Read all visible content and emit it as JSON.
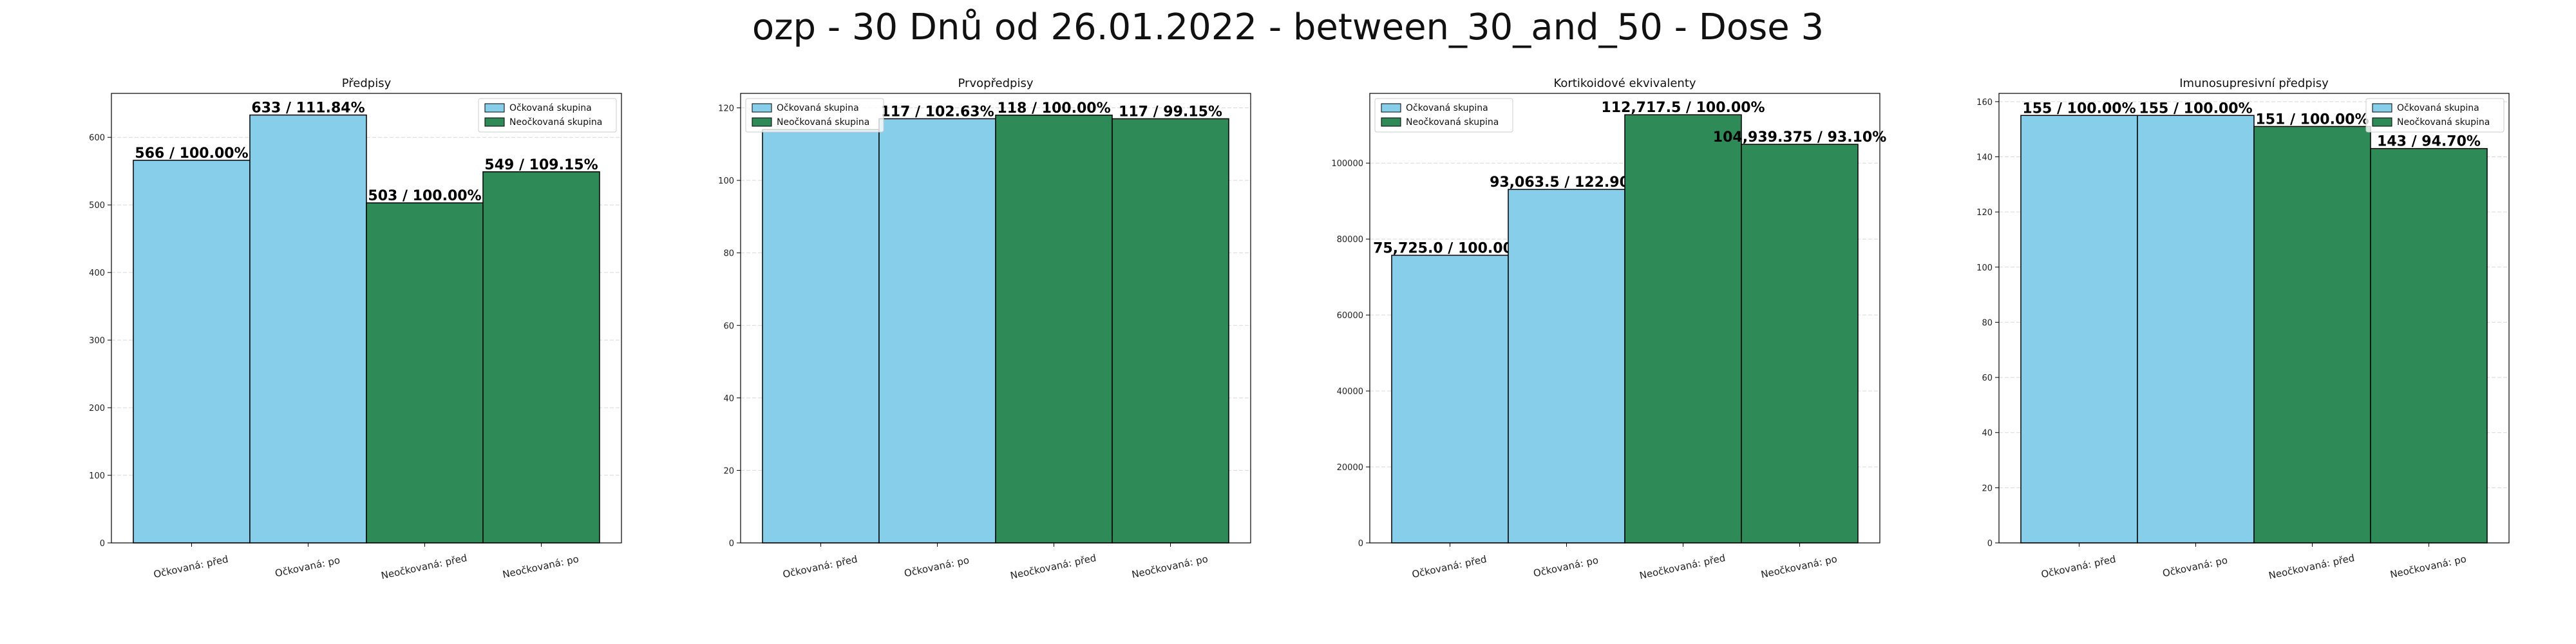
{
  "title": "ozp - 30 Dnů od 26.01.2022 - between_30_and_50 - Dose 3",
  "colors": {
    "vaccinated": "#87CEEB",
    "unvaccinated": "#2E8B57"
  },
  "chart_data": [
    {
      "type": "bar",
      "title": "Předpisy",
      "categories": [
        "Očkovaná: před",
        "Očkovaná: po",
        "Neočkovaná: před",
        "Neočkovaná: po"
      ],
      "values": [
        566,
        633,
        503,
        549
      ],
      "bar_labels": [
        "566 / 100.00%",
        "633 / 111.84%",
        "503 / 100.00%",
        "549 / 109.15%"
      ],
      "groups": [
        "vaccinated",
        "vaccinated",
        "unvaccinated",
        "unvaccinated"
      ],
      "yticks": [
        0,
        100,
        200,
        300,
        400,
        500,
        600
      ],
      "ylim": [
        0,
        665
      ],
      "legend": [
        "Očkovaná skupina",
        "Neočkovaná skupina"
      ],
      "legend_position": "top-right",
      "grid": true
    },
    {
      "type": "bar",
      "title": "Prvopředpisy",
      "categories": [
        "Očkovaná: před",
        "Očkovaná: po",
        "Neočkovaná: před",
        "Neočkovaná: po"
      ],
      "values": [
        114,
        117,
        118,
        117
      ],
      "bar_labels": [
        "",
        "117 / 102.63%",
        "118 / 100.00%",
        "117 / 99.15%"
      ],
      "groups": [
        "vaccinated",
        "vaccinated",
        "unvaccinated",
        "unvaccinated"
      ],
      "yticks": [
        0,
        20,
        40,
        60,
        80,
        100,
        120
      ],
      "ylim": [
        0,
        124
      ],
      "legend": [
        "Očkovaná skupina",
        "Neočkovaná skupina"
      ],
      "legend_position": "top-left",
      "grid": true
    },
    {
      "type": "bar",
      "title": "Kortikoidové ekvivalenty",
      "categories": [
        "Očkovaná: před",
        "Očkovaná: po",
        "Neočkovaná: před",
        "Neočkovaná: po"
      ],
      "values": [
        75725.0,
        93063.5,
        112717.5,
        104939.375
      ],
      "bar_labels": [
        "75,725.0 / 100.00%",
        "93,063.5 / 122.90%",
        "112,717.5 / 100.00%",
        "104,939.375 / 93.10%"
      ],
      "groups": [
        "vaccinated",
        "vaccinated",
        "unvaccinated",
        "unvaccinated"
      ],
      "yticks": [
        0,
        20000,
        40000,
        60000,
        80000,
        100000
      ],
      "ylim": [
        0,
        118353
      ],
      "legend": [
        "Očkovaná skupina",
        "Neočkovaná skupina"
      ],
      "legend_position": "top-left",
      "grid": true
    },
    {
      "type": "bar",
      "title": "Imunosupresivní předpisy",
      "categories": [
        "Očkovaná: před",
        "Očkovaná: po",
        "Neočkovaná: před",
        "Neočkovaná: po"
      ],
      "values": [
        155,
        155,
        151,
        143
      ],
      "bar_labels": [
        "155 / 100.00%",
        "155 / 100.00%",
        "151 / 100.00%",
        "143 / 94.70%"
      ],
      "groups": [
        "vaccinated",
        "vaccinated",
        "unvaccinated",
        "unvaccinated"
      ],
      "yticks": [
        0,
        20,
        40,
        60,
        80,
        100,
        120,
        140,
        160
      ],
      "ylim": [
        0,
        163
      ],
      "legend": [
        "Očkovaná skupina",
        "Neočkovaná skupina"
      ],
      "legend_position": "top-right",
      "grid": true
    }
  ]
}
